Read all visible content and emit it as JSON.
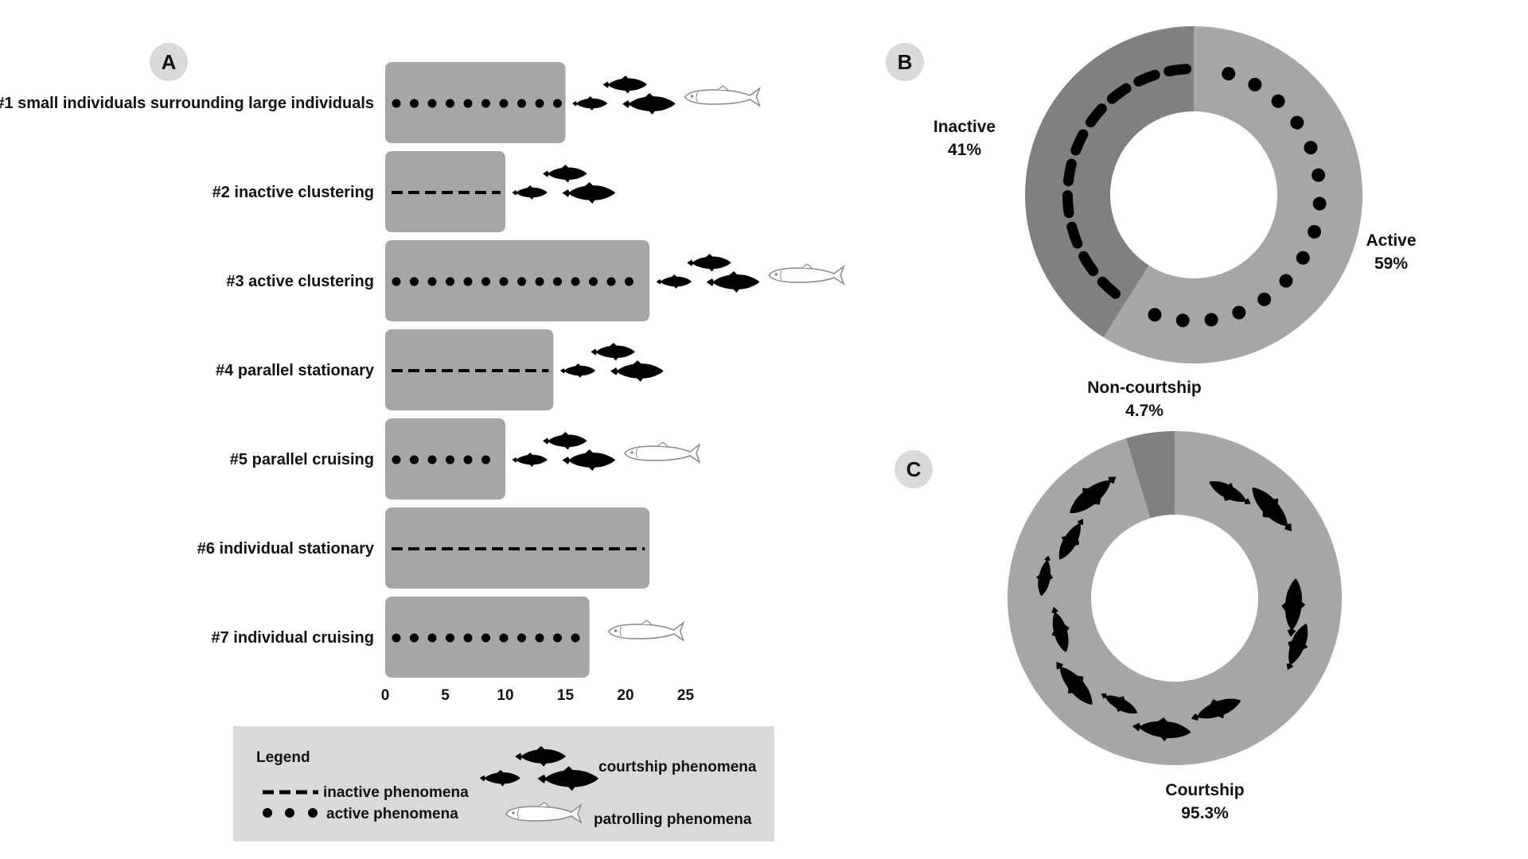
{
  "panels": {
    "a": {
      "letter": "A"
    },
    "b": {
      "letter": "B"
    },
    "c": {
      "letter": "C"
    }
  },
  "chart_data": [
    {
      "type": "bar",
      "orientation": "horizontal",
      "categories": [
        "#1 small individuals surrounding large individuals",
        "#2 inactive clustering",
        "#3 active clustering",
        "#4 parallel stationary",
        "#5 parallel cruising",
        "#6 individual stationary",
        "#7 individual cruising"
      ],
      "values": [
        15,
        10,
        22,
        14,
        10,
        22,
        17
      ],
      "xticks": [
        0,
        5,
        10,
        15,
        20,
        25
      ],
      "xlim": [
        0,
        25
      ],
      "phenomena": [
        "active",
        "inactive",
        "active",
        "inactive",
        "active",
        "inactive",
        "active"
      ],
      "courtship": [
        true,
        true,
        true,
        true,
        true,
        false,
        false
      ],
      "patrolling": [
        true,
        false,
        true,
        false,
        true,
        false,
        true
      ],
      "bar_color": "#a6a6a6"
    },
    {
      "type": "pie",
      "style": "donut",
      "labels": [
        "Active",
        "Inactive"
      ],
      "values": [
        59,
        41
      ],
      "display": [
        "59%",
        "41%"
      ],
      "colors": [
        "#a6a6a6",
        "#808080"
      ]
    },
    {
      "type": "pie",
      "style": "donut",
      "labels": [
        "Courtship",
        "Non-courtship"
      ],
      "values": [
        95.3,
        4.7
      ],
      "display": [
        "95.3%",
        "4.7%"
      ],
      "colors": [
        "#a6a6a6",
        "#808080"
      ]
    }
  ],
  "legend": {
    "title": "Legend",
    "inactive": "inactive phenomena",
    "active": "active phenomena",
    "courtship": "courtship phenomena",
    "patrolling": "patrolling phenomena"
  },
  "icons": {
    "courtship": "fish-group-black-icon",
    "patrolling": "fish-white-outline-icon"
  }
}
